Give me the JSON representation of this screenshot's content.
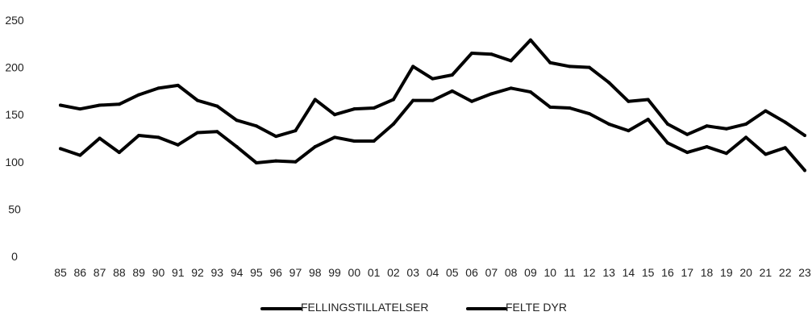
{
  "chart_data": {
    "type": "line",
    "x": [
      "85",
      "86",
      "87",
      "88",
      "89",
      "90",
      "91",
      "92",
      "93",
      "94",
      "95",
      "96",
      "97",
      "98",
      "99",
      "00",
      "01",
      "02",
      "03",
      "04",
      "05",
      "06",
      "07",
      "08",
      "09",
      "10",
      "11",
      "12",
      "13",
      "14",
      "15",
      "16",
      "17",
      "18",
      "19",
      "20",
      "21",
      "22",
      "23"
    ],
    "series": [
      {
        "name": "FELLINGSTILLATELSER",
        "values": [
          160,
          156,
          160,
          161,
          171,
          178,
          181,
          165,
          159,
          144,
          138,
          127,
          133,
          166,
          150,
          156,
          157,
          166,
          201,
          188,
          192,
          215,
          214,
          207,
          229,
          205,
          201,
          200,
          184,
          164,
          166,
          140,
          129,
          138,
          135,
          140,
          154,
          142,
          128
        ]
      },
      {
        "name": "FELTE DYR",
        "values": [
          114,
          107,
          125,
          110,
          128,
          126,
          118,
          131,
          132,
          116,
          99,
          101,
          100,
          116,
          126,
          122,
          122,
          140,
          165,
          165,
          175,
          164,
          172,
          178,
          174,
          158,
          157,
          151,
          140,
          133,
          145,
          120,
          110,
          116,
          109,
          126,
          108,
          115,
          91
        ]
      }
    ],
    "ylim": [
      0,
      250
    ],
    "yticks": [
      0,
      50,
      100,
      150,
      200,
      250
    ],
    "xlabel": "",
    "ylabel": "",
    "title": "",
    "grid": false,
    "legend_position": "bottom-center",
    "line_color": "#000000"
  }
}
